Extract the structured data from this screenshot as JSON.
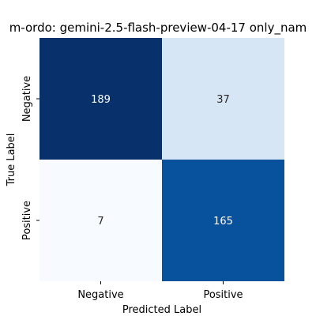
{
  "chart_data": {
    "type": "heatmap",
    "title": "m-ordo: gemini-2.5-flash-preview-04-17 only_nam",
    "xlabel": "Predicted Label",
    "ylabel": "True Label",
    "x_categories": [
      "Negative",
      "Positive"
    ],
    "y_categories": [
      "Negative",
      "Positive"
    ],
    "matrix": [
      [
        189,
        37
      ],
      [
        7,
        165
      ]
    ],
    "colormap": "Blues",
    "colorbar": false,
    "grid": false,
    "cell_colors": [
      [
        "#08306b",
        "#d6e6f5"
      ],
      [
        "#f7fbff",
        "#08519c"
      ]
    ],
    "text_colors": [
      [
        "#ffffff",
        "#262626"
      ],
      [
        "#262626",
        "#ffffff"
      ]
    ]
  }
}
